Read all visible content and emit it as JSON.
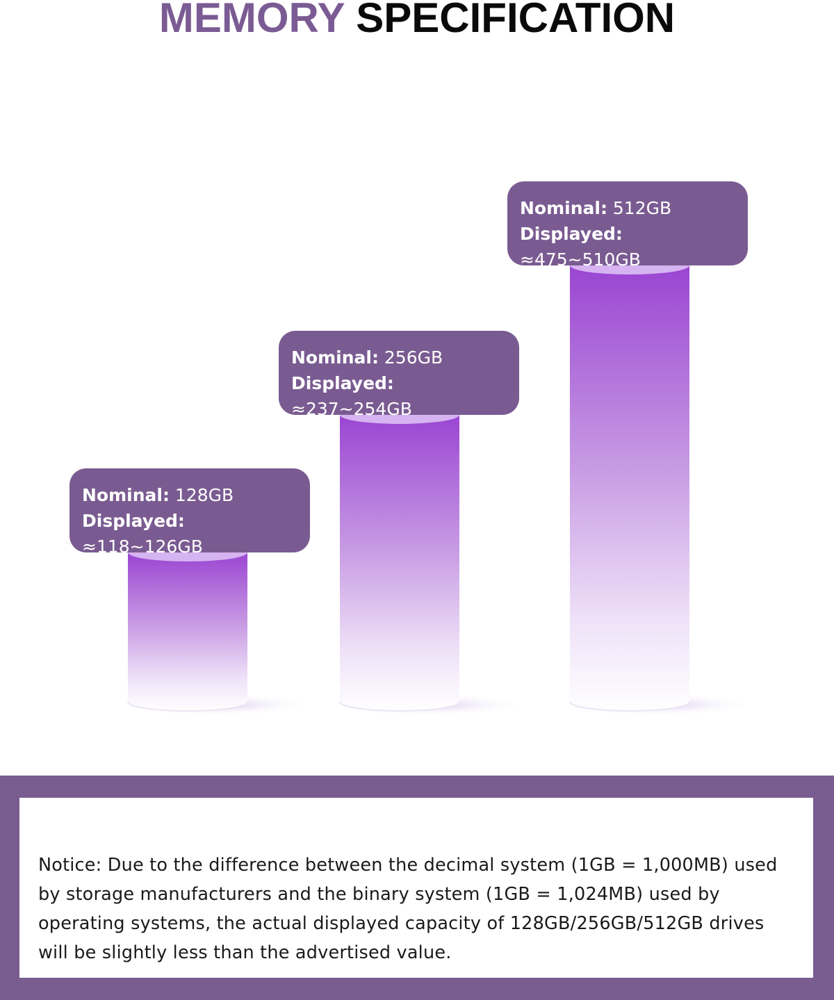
{
  "header": {
    "title_part1": "MEMORY",
    "title_part2": "SPECIFICATION"
  },
  "chart_data": {
    "type": "bar",
    "categories": [
      "128GB",
      "256GB",
      "512GB"
    ],
    "values": [
      128,
      256,
      512
    ],
    "labels": [
      {
        "nominal_label": "Nominal:",
        "nominal_value": "128GB",
        "displayed_label": "Displayed:",
        "displayed_value": "≈118~126GB"
      },
      {
        "nominal_label": "Nominal:",
        "nominal_value": "256GB",
        "displayed_label": "Displayed:",
        "displayed_value": "≈237~254GB"
      },
      {
        "nominal_label": "Nominal:",
        "nominal_value": "512GB",
        "displayed_label": "Displayed:",
        "displayed_value": "≈475~510GB"
      }
    ],
    "title": "",
    "xlabel": "",
    "ylabel": "",
    "colors": {
      "bar_top": "#9a4bd3",
      "bar_cap": "#d6b3f1",
      "label_bg": "#7a5b91"
    }
  },
  "notice": {
    "text": "Notice: Due to the difference between the decimal system (1GB = 1,000MB) used by storage manufacturers and the binary system (1GB = 1,024MB) used by operating systems, the actual displayed capacity of 128GB/256GB/512GB drives will be slightly less than the advertised value."
  }
}
